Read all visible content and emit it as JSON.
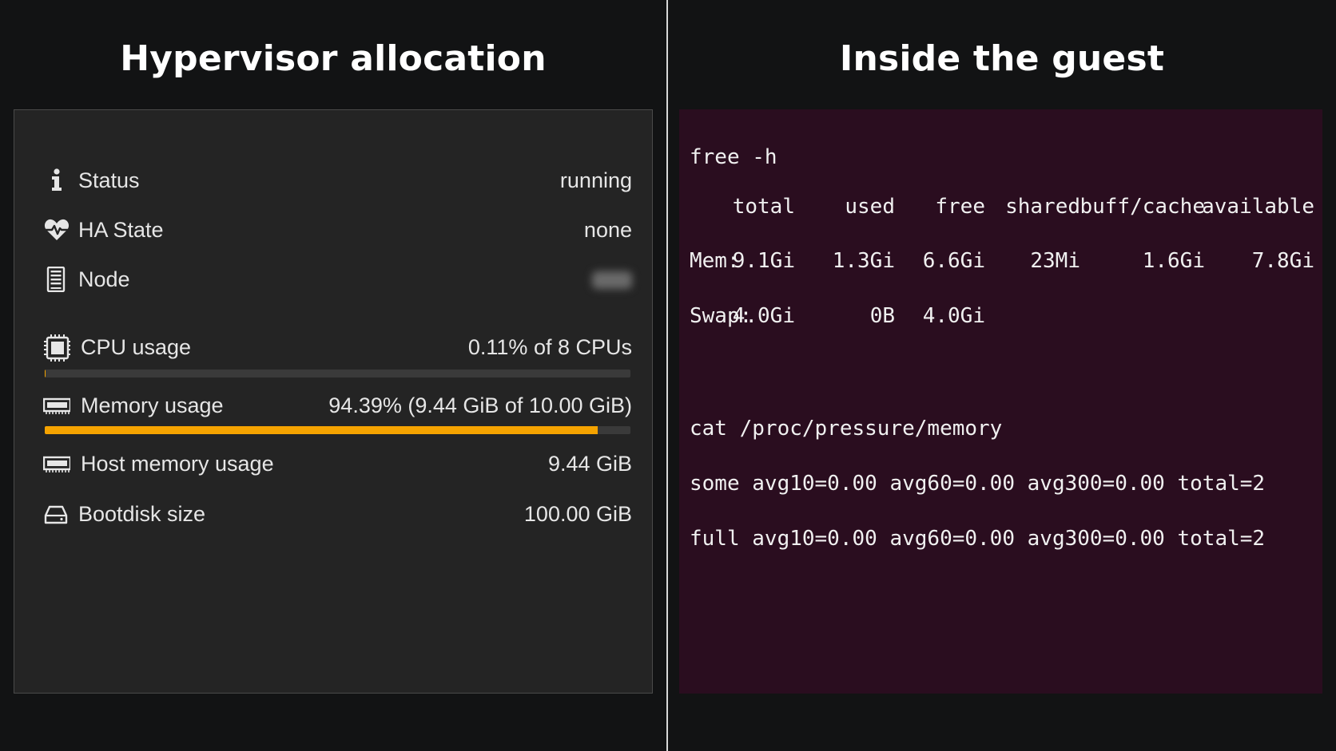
{
  "left_heading": "Hypervisor allocation",
  "right_heading": "Inside the guest",
  "summary": {
    "status": {
      "label": "Status",
      "value": "running",
      "icon": "info-icon"
    },
    "ha_state": {
      "label": "HA State",
      "value": "none",
      "icon": "heartbeat-icon"
    },
    "node": {
      "label": "Node",
      "icon": "server-icon"
    },
    "cpu": {
      "label": "CPU usage",
      "value": "0.11% of 8 CPUs",
      "icon": "cpu-chip-icon",
      "fraction": 0.0011
    },
    "memory": {
      "label": "Memory usage",
      "value": "94.39% (9.44 GiB of 10.00 GiB)",
      "icon": "memory-icon",
      "fraction": 0.9439
    },
    "host_memory": {
      "label": "Host memory usage",
      "value": "9.44 GiB",
      "icon": "memory-icon"
    },
    "bootdisk": {
      "label": "Bootdisk size",
      "value": "100.00 GiB",
      "icon": "hard-drive-icon"
    },
    "bar_fill_color": "#f5a300"
  },
  "terminal": {
    "cmd1": "free -h",
    "headers": [
      "total",
      "used",
      "free",
      "shared",
      "buff/cache",
      "available"
    ],
    "mem": {
      "label": "Mem:",
      "values": [
        "9.1Gi",
        "1.3Gi",
        "6.6Gi",
        "23Mi",
        "1.6Gi",
        "7.8Gi"
      ]
    },
    "swap": {
      "label": "Swap:",
      "values": [
        "4.0Gi",
        "0B",
        "4.0Gi"
      ]
    },
    "cmd2": "cat /proc/pressure/memory",
    "psi_some": "some avg10=0.00 avg60=0.00 avg300=0.00 total=2",
    "psi_full": "full avg10=0.00 avg60=0.00 avg300=0.00 total=2",
    "background": "#2a0d1f"
  }
}
